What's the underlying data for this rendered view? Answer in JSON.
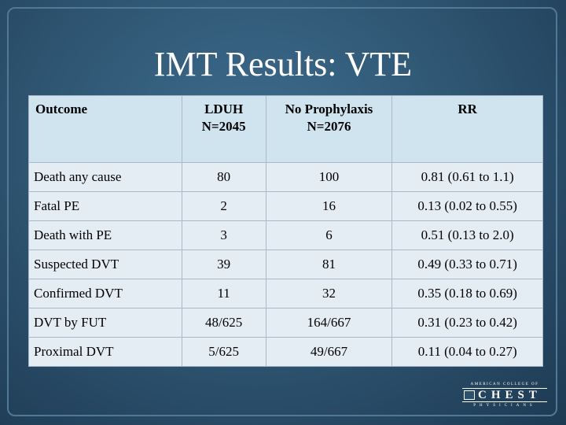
{
  "slide": {
    "title": "IMT Results: VTE"
  },
  "table": {
    "headers": {
      "outcome": "Outcome",
      "lduh_name": "LDUH",
      "lduh_n": "N=2045",
      "noproph_name": "No Prophylaxis",
      "noproph_n": "N=2076",
      "rr": "RR"
    },
    "rows": [
      {
        "outcome": "Death any cause",
        "lduh": "80",
        "no_prophylaxis": "100",
        "rr": "0.81 (0.61 to 1.1)"
      },
      {
        "outcome": "Fatal PE",
        "lduh": "2",
        "no_prophylaxis": "16",
        "rr": "0.13 (0.02 to 0.55)"
      },
      {
        "outcome": "Death with PE",
        "lduh": "3",
        "no_prophylaxis": "6",
        "rr": "0.51 (0.13 to 2.0)"
      },
      {
        "outcome": "Suspected DVT",
        "lduh": "39",
        "no_prophylaxis": "81",
        "rr": "0.49 (0.33 to 0.71)"
      },
      {
        "outcome": "Confirmed DVT",
        "lduh": "11",
        "no_prophylaxis": "32",
        "rr": "0.35 (0.18 to 0.69)"
      },
      {
        "outcome": "DVT by FUT",
        "lduh": "48/625",
        "no_prophylaxis": "164/667",
        "rr": "0.31 (0.23 to 0.42)"
      },
      {
        "outcome": "Proximal DVT",
        "lduh": "5/625",
        "no_prophylaxis": "49/667",
        "rr": "0.11 (0.04 to 0.27)"
      }
    ]
  },
  "logo": {
    "top_text": "AMERICAN COLLEGE OF",
    "main_text": "CHEST",
    "bottom_text": "PHYSICIANS"
  },
  "colors": {
    "background": "#305875",
    "header_fill": "#cfe4ef",
    "row_fill": "#e5edf4",
    "title_text": "#ffffff"
  }
}
